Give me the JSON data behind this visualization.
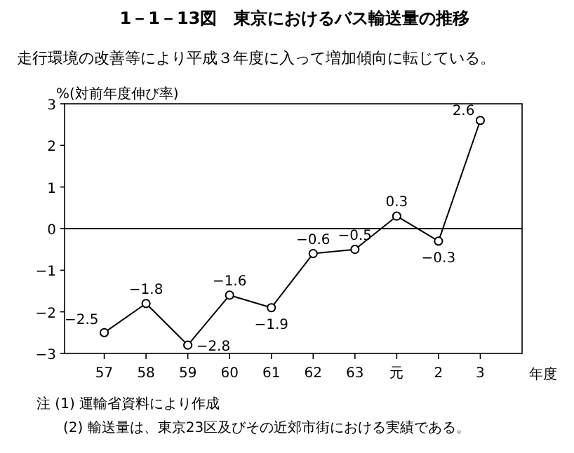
{
  "chart_data": {
    "type": "line",
    "title": "1－1－13図　東京におけるバス輸送量の推移",
    "subtitle": "走行環境の改善等により平成３年度に入って増加傾向に転じている。",
    "ylabel": "%(対前年度伸び率)",
    "xlabel": "年度",
    "categories": [
      "57",
      "58",
      "59",
      "60",
      "61",
      "62",
      "63",
      "元",
      "2",
      "3"
    ],
    "values": [
      -2.5,
      -1.8,
      -2.8,
      -1.6,
      -1.9,
      -0.6,
      -0.5,
      0.3,
      -0.3,
      2.6
    ],
    "color": "#000000",
    "marker": "circle",
    "line_style": "solid",
    "data_labels": true,
    "ylim": [
      -3,
      3
    ],
    "yticks": [
      -3,
      -2,
      -1,
      0,
      1,
      2,
      3
    ],
    "ref_lines": [
      {
        "axis": "y",
        "value": 0,
        "color": "#000000"
      }
    ],
    "annotations": [
      "注 (1) 運輸省資料により作成",
      "(2) 輸送量は、東京23区及びその近郊市街における実績である。"
    ]
  }
}
